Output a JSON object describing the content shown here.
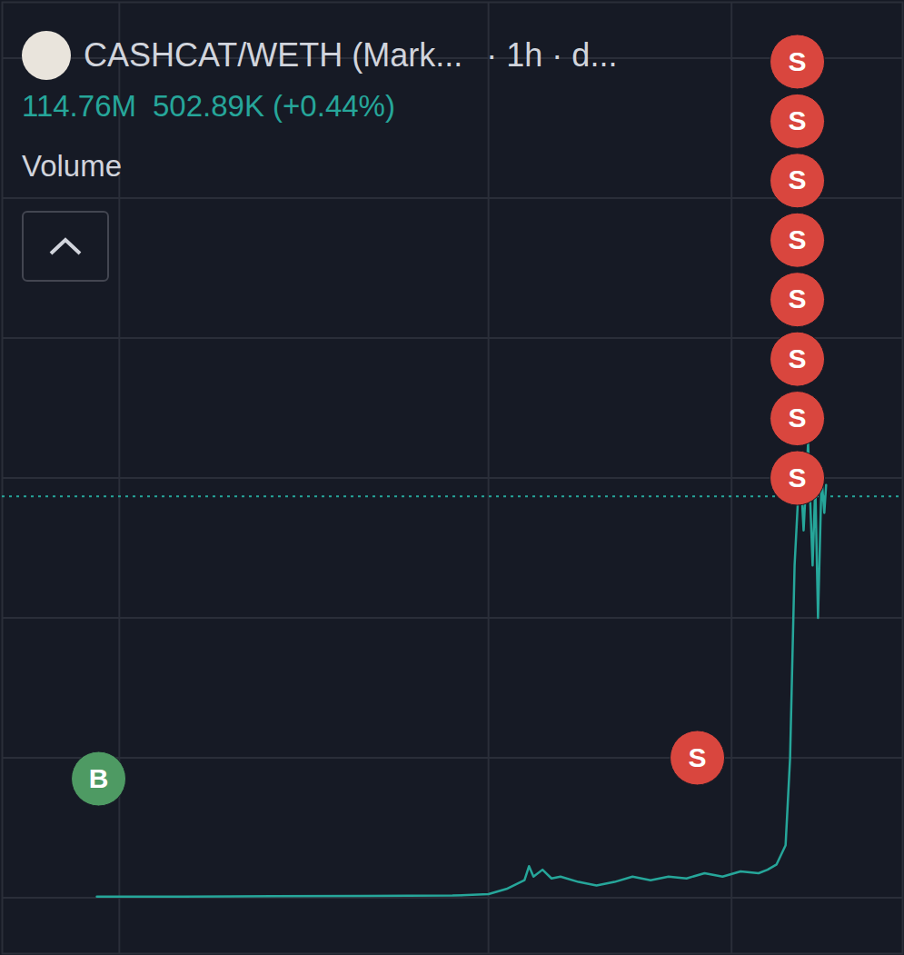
{
  "chart_data": {
    "type": "line",
    "title": "CASHCAT/WETH (Mark...",
    "subtitle": "· 1h · d...",
    "last_value": 114.76,
    "last_label": "114.76M",
    "change_label": "502.89K (+0.44%)",
    "volume_label": "Volume",
    "x": [
      10.5,
      20,
      30,
      40,
      50,
      54,
      56,
      58,
      58.5,
      59,
      60,
      61,
      62,
      64,
      66,
      68,
      70,
      72,
      74,
      76,
      78,
      80,
      82,
      84,
      85,
      86,
      87,
      87.5,
      88,
      88.3,
      88.6,
      89,
      89.5,
      90,
      90.3,
      90.6,
      91,
      91.3,
      91.5
    ],
    "values": [
      0.3,
      0.3,
      0.4,
      0.5,
      0.6,
      1,
      2.5,
      5,
      9,
      6,
      8,
      5.5,
      6,
      4.5,
      3.5,
      4.5,
      6,
      5,
      6,
      5.5,
      7,
      6,
      7.5,
      7,
      8,
      9.5,
      15,
      40,
      95,
      110,
      125,
      105,
      130,
      95,
      118,
      80,
      120,
      110,
      118
    ],
    "color": "#26a69a",
    "xlim": [
      0,
      100
    ],
    "xticks": [
      13,
      54,
      81
    ],
    "ylim": [
      -16,
      256
    ],
    "yticks": [
      0,
      40,
      80,
      120,
      160,
      200,
      240
    ],
    "grid": true,
    "tick_labels": false,
    "markers": [
      {
        "x": 10.7,
        "y": 34,
        "label": "B",
        "color": "#4e9a63"
      },
      {
        "x": 77.2,
        "y": 40,
        "label": "S",
        "color": "#d9463e"
      },
      {
        "x": 88.3,
        "y": 120,
        "label": "S",
        "color": "#d9463e"
      },
      {
        "x": 88.3,
        "y": 137,
        "label": "S",
        "color": "#d9463e"
      },
      {
        "x": 88.3,
        "y": 154,
        "label": "S",
        "color": "#d9463e"
      },
      {
        "x": 88.3,
        "y": 171,
        "label": "S",
        "color": "#d9463e"
      },
      {
        "x": 88.3,
        "y": 188,
        "label": "S",
        "color": "#d9463e"
      },
      {
        "x": 88.3,
        "y": 205,
        "label": "S",
        "color": "#d9463e"
      },
      {
        "x": 88.3,
        "y": 222,
        "label": "S",
        "color": "#d9463e"
      },
      {
        "x": 88.3,
        "y": 239,
        "label": "S",
        "color": "#d9463e"
      }
    ]
  }
}
